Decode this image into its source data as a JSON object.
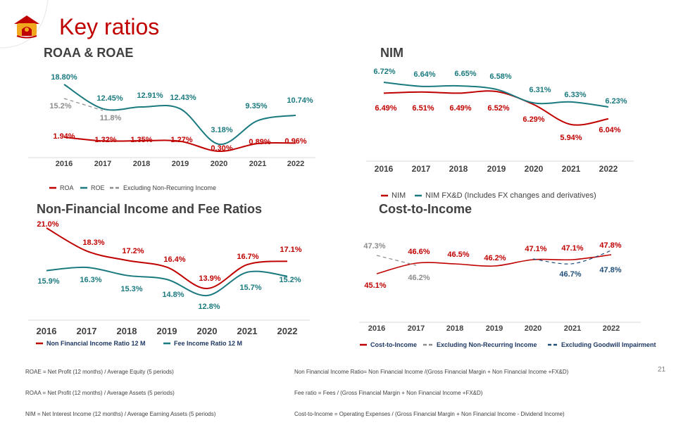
{
  "page": {
    "title": "Key ratios",
    "page_number": "21",
    "footnotes_left": [
      "ROAE = Net Profit (12 months) / Average Equity (5 periods)",
      "ROAA = Net Profit (12 months) / Average Assets (5 periods)",
      "NIM = Net Interest Income (12 months) / Average Earning Assets (5 periods)"
    ],
    "footnotes_right": [
      "Non Financial Income Ratio= Non Financial Income /(Gross Financial Margin + Non Financial Income +FX&D)",
      "Fee ratio = Fees / (Gross Financial Margin + Non Financial Income +FX&D)",
      "Cost-to-Income = Operating Expenses / (Gross Financial Margin + Non Financial Income - Dividend Income)"
    ]
  },
  "colors": {
    "red": "#c00000",
    "teal": "#1b7a7f",
    "gray": "#8c8c8c",
    "navy": "#1f4e79"
  },
  "chart_data": [
    {
      "id": "roa-roe",
      "type": "line",
      "title": "ROAA & ROAE",
      "categories": [
        "2016",
        "2017",
        "2018",
        "2019",
        "2020",
        "2021",
        "2022"
      ],
      "series": [
        {
          "name": "ROA",
          "color": "#c00000",
          "values": [
            1.94,
            1.32,
            1.35,
            1.27,
            0.3,
            0.89,
            0.96
          ],
          "labels": [
            "1.94%",
            "1.32%",
            "1.35%",
            "1.27%",
            "0.30%",
            "0.89%",
            "0.96%"
          ]
        },
        {
          "name": "ROE",
          "color": "#1b7a7f",
          "values": [
            18.8,
            12.45,
            12.91,
            12.43,
            3.18,
            9.35,
            10.74
          ],
          "labels": [
            "18.80%",
            "12.45%",
            "12.91%",
            "12.43%",
            "3.18%",
            "9.35%",
            "10.74%"
          ]
        },
        {
          "name": "Excluding Non-Recurring Income",
          "color": "#8c8c8c",
          "dashed": true,
          "values": [
            15.2,
            11.8,
            null,
            null,
            null,
            null,
            null
          ],
          "labels": [
            "15.2%",
            "11.8%",
            "",
            "",
            "",
            "",
            ""
          ]
        }
      ]
    },
    {
      "id": "nim",
      "type": "line",
      "title": "NIM",
      "categories": [
        "2016",
        "2017",
        "2018",
        "2019",
        "2020",
        "2021",
        "2022"
      ],
      "series": [
        {
          "name": "NIM",
          "color": "#c00000",
          "values": [
            6.49,
            6.51,
            6.49,
            6.52,
            6.29,
            5.94,
            6.04
          ],
          "labels": [
            "6.49%",
            "6.51%",
            "6.49%",
            "6.52%",
            "6.29%",
            "5.94%",
            "6.04%"
          ]
        },
        {
          "name": "NIM FX&D (Includes FX changes and derivatives)",
          "color": "#1b7a7f",
          "values": [
            6.72,
            6.64,
            6.65,
            6.58,
            6.31,
            6.33,
            6.23
          ],
          "labels": [
            "6.72%",
            "6.64%",
            "6.65%",
            "6.58%",
            "6.31%",
            "6.33%",
            "6.23%"
          ]
        }
      ]
    },
    {
      "id": "nfi",
      "type": "line",
      "title": "Non-Financial Income and Fee Ratios",
      "categories": [
        "2016",
        "2017",
        "2018",
        "2019",
        "2020",
        "2021",
        "2022"
      ],
      "series": [
        {
          "name": "Non Financial  Income Ratio 12 M",
          "color": "#c00000",
          "values": [
            21.0,
            18.3,
            17.2,
            16.4,
            13.9,
            16.7,
            17.1
          ],
          "labels": [
            "21.0%",
            "18.3%",
            "17.2%",
            "16.4%",
            "13.9%",
            "16.7%",
            "17.1%"
          ]
        },
        {
          "name": "Fee Income Ratio 12 M",
          "color": "#1b7a7f",
          "values": [
            15.9,
            16.3,
            15.3,
            14.8,
            12.8,
            15.7,
            15.2
          ],
          "labels": [
            "15.9%",
            "16.3%",
            "15.3%",
            "14.8%",
            "12.8%",
            "15.7%",
            "15.2%"
          ]
        }
      ]
    },
    {
      "id": "cti",
      "type": "line",
      "title": "Cost-to-Income",
      "categories": [
        "2016",
        "2017",
        "2018",
        "2019",
        "2020",
        "2021",
        "2022"
      ],
      "series": [
        {
          "name": "Cost-to-Income",
          "color": "#c00000",
          "values": [
            45.1,
            46.6,
            46.5,
            46.2,
            47.1,
            47.1,
            47.8
          ],
          "labels": [
            "45.1%",
            "46.6%",
            "46.5%",
            "46.2%",
            "47.1%",
            "47.1%",
            "47.8%"
          ]
        },
        {
          "name": "Excluding Non-Recurring  Income",
          "color": "#8c8c8c",
          "dashed": true,
          "values": [
            47.3,
            46.2,
            null,
            null,
            null,
            null,
            null
          ],
          "labels": [
            "47.3%",
            "46.2%",
            "",
            "",
            "",
            "",
            ""
          ]
        },
        {
          "name": "Excluding Goodwill  Impairment",
          "color": "#1f4e79",
          "dashed": true,
          "values": [
            null,
            null,
            null,
            null,
            47.1,
            46.7,
            47.8
          ],
          "labels": [
            "",
            "",
            "",
            "",
            "",
            "46.7%",
            "47.8%"
          ]
        }
      ]
    }
  ]
}
